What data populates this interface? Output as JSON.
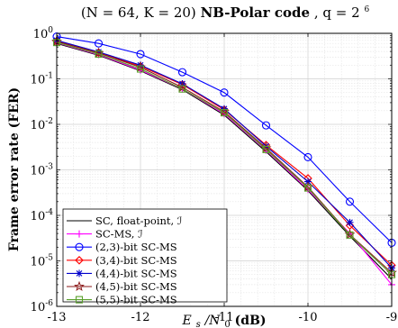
{
  "chart_data": {
    "type": "line",
    "title_parts": {
      "params": "(N = 64, K = 20)",
      "bold": "NB-Polar code",
      "q": ", q = 2",
      "q_exp": "6"
    },
    "xlabel": {
      "es": "E",
      "sub": "s",
      "rest": "/N",
      "sub0": "0",
      "unit": "(dB)"
    },
    "ylabel": "Frame error rate (FER)",
    "xlim": [
      -13,
      -9
    ],
    "ylim_log10": [
      -6,
      0
    ],
    "y_scale": "log",
    "grid": true,
    "legend_position": "bottom-left",
    "x_ticks": [
      "-13",
      "-12",
      "-11",
      "-10",
      "-9"
    ],
    "y_ticks": [
      {
        "base": "10",
        "exp": "0"
      },
      {
        "base": "10",
        "exp": "-1"
      },
      {
        "base": "10",
        "exp": "-2"
      },
      {
        "base": "10",
        "exp": "-3"
      },
      {
        "base": "10",
        "exp": "-4"
      },
      {
        "base": "10",
        "exp": "-5"
      },
      {
        "base": "10",
        "exp": "-6"
      }
    ],
    "x": [
      -13,
      -12.5,
      -12,
      -11.5,
      -11,
      -10.5,
      -10,
      -9.5,
      -9
    ],
    "series": [
      {
        "name": "SC, float-point, ℐ",
        "color": "#000000",
        "marker": "none",
        "values": [
          0.6,
          0.33,
          0.15,
          0.058,
          0.016,
          0.0025,
          0.00035,
          3.5e-05,
          4e-06
        ]
      },
      {
        "name": "SC-MS, ℐ",
        "color": "#ff00ff",
        "marker": "plus",
        "values": [
          0.62,
          0.34,
          0.155,
          0.06,
          0.017,
          0.0027,
          0.00037,
          4e-05,
          3e-06
        ]
      },
      {
        "name": "(2,3)-bit SC-MS",
        "color": "#0000ff",
        "marker": "circle",
        "values": [
          0.85,
          0.6,
          0.35,
          0.14,
          0.05,
          0.0095,
          0.0019,
          0.0002,
          2.5e-05
        ]
      },
      {
        "name": "(3,4)-bit SC-MS",
        "color": "#ff0000",
        "marker": "diamond",
        "values": [
          0.68,
          0.38,
          0.19,
          0.075,
          0.021,
          0.0035,
          0.00065,
          6e-05,
          8e-06
        ]
      },
      {
        "name": "(4,4)-bit SC-MS",
        "color": "#0000cc",
        "marker": "star",
        "values": [
          0.7,
          0.39,
          0.2,
          0.078,
          0.022,
          0.0033,
          0.00055,
          7e-05,
          7e-06
        ]
      },
      {
        "name": "(4,5)-bit SC-MS",
        "color": "#8b1a1a",
        "marker": "pentagram",
        "values": [
          0.66,
          0.37,
          0.18,
          0.065,
          0.019,
          0.003,
          0.00042,
          3.8e-05,
          5.5e-06
        ]
      },
      {
        "name": "(5,5)-bit SC-MS",
        "color": "#5aa02c",
        "marker": "square",
        "values": [
          0.63,
          0.35,
          0.165,
          0.06,
          0.018,
          0.0028,
          0.0004,
          3.7e-05,
          5e-06
        ]
      }
    ]
  }
}
